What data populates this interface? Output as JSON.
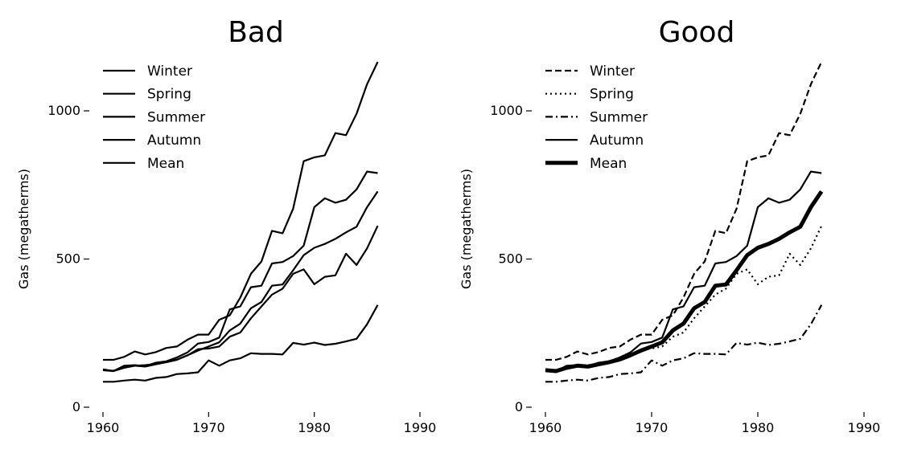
{
  "chart_data": [
    {
      "type": "line",
      "title": "Bad",
      "xlabel": "",
      "ylabel": "Gas (megatherms)",
      "xlim": [
        1960,
        1990
      ],
      "ylim": [
        0,
        1200
      ],
      "xticks": [
        "1960",
        "1970",
        "1980",
        "1990"
      ],
      "yticks": [
        "0",
        "500",
        "1000"
      ],
      "grid": false,
      "legend": "top-left",
      "x": [
        1960,
        1961,
        1962,
        1963,
        1964,
        1965,
        1966,
        1967,
        1968,
        1969,
        1970,
        1971,
        1972,
        1973,
        1974,
        1975,
        1976,
        1977,
        1978,
        1979,
        1980,
        1981,
        1982,
        1983,
        1984,
        1985,
        1986
      ],
      "series": [
        {
          "name": "Winter",
          "style": "solid",
          "width": 2.2,
          "values": [
            160,
            160,
            170,
            188,
            178,
            186,
            200,
            205,
            228,
            245,
            245,
            295,
            310,
            370,
            450,
            492,
            595,
            587,
            670,
            830,
            843,
            850,
            925,
            918,
            990,
            1090,
            1165
          ]
        },
        {
          "name": "Spring",
          "style": "solid",
          "width": 2.2,
          "values": [
            125,
            123,
            134,
            140,
            142,
            146,
            152,
            160,
            175,
            196,
            198,
            205,
            238,
            252,
            300,
            340,
            380,
            400,
            450,
            465,
            415,
            440,
            445,
            518,
            480,
            536,
            612
          ]
        },
        {
          "name": "Summer",
          "style": "solid",
          "width": 2.2,
          "values": [
            86,
            86,
            90,
            93,
            90,
            99,
            102,
            112,
            114,
            118,
            158,
            140,
            158,
            165,
            182,
            180,
            180,
            178,
            217,
            211,
            218,
            210,
            214,
            222,
            231,
            280,
            345
          ]
        },
        {
          "name": "Autumn",
          "style": "solid",
          "width": 2.2,
          "values": [
            128,
            122,
            140,
            142,
            138,
            150,
            155,
            168,
            185,
            215,
            220,
            235,
            330,
            340,
            405,
            410,
            485,
            490,
            510,
            545,
            675,
            705,
            690,
            700,
            735,
            795,
            790
          ]
        },
        {
          "name": "Mean",
          "style": "solid",
          "width": 2.2,
          "values": [
            125,
            122,
            133,
            140,
            137,
            145,
            152,
            161,
            175,
            191,
            205,
            219,
            259,
            282,
            334,
            355,
            410,
            414,
            462,
            513,
            538,
            551,
            568,
            590,
            609,
            675,
            728
          ]
        }
      ]
    },
    {
      "type": "line",
      "title": "Good",
      "xlabel": "",
      "ylabel": "Gas (megatherms)",
      "xlim": [
        1960,
        1990
      ],
      "ylim": [
        0,
        1200
      ],
      "xticks": [
        "1960",
        "1970",
        "1980",
        "1990"
      ],
      "yticks": [
        "0",
        "500",
        "1000"
      ],
      "grid": false,
      "legend": "top-left",
      "x": [
        1960,
        1961,
        1962,
        1963,
        1964,
        1965,
        1966,
        1967,
        1968,
        1969,
        1970,
        1971,
        1972,
        1973,
        1974,
        1975,
        1976,
        1977,
        1978,
        1979,
        1980,
        1981,
        1982,
        1983,
        1984,
        1985,
        1986
      ],
      "series": [
        {
          "name": "Winter",
          "style": "dashed",
          "width": 2.2,
          "values": [
            160,
            160,
            170,
            188,
            178,
            186,
            200,
            205,
            228,
            245,
            245,
            295,
            310,
            370,
            450,
            492,
            595,
            587,
            670,
            830,
            843,
            850,
            925,
            918,
            990,
            1090,
            1165
          ]
        },
        {
          "name": "Spring",
          "style": "dotted",
          "width": 2.2,
          "values": [
            125,
            123,
            134,
            140,
            142,
            146,
            152,
            160,
            175,
            196,
            198,
            205,
            238,
            252,
            300,
            340,
            380,
            400,
            450,
            465,
            415,
            440,
            445,
            518,
            480,
            536,
            612
          ]
        },
        {
          "name": "Summer",
          "style": "dashdot",
          "width": 2.2,
          "values": [
            86,
            86,
            90,
            93,
            90,
            99,
            102,
            112,
            114,
            118,
            158,
            140,
            158,
            165,
            182,
            180,
            180,
            178,
            217,
            211,
            218,
            210,
            214,
            222,
            231,
            280,
            345
          ]
        },
        {
          "name": "Autumn",
          "style": "solid",
          "width": 2.2,
          "values": [
            128,
            122,
            140,
            142,
            138,
            150,
            155,
            168,
            185,
            215,
            220,
            235,
            330,
            340,
            405,
            410,
            485,
            490,
            510,
            545,
            675,
            705,
            690,
            700,
            735,
            795,
            790
          ]
        },
        {
          "name": "Mean",
          "style": "solid",
          "width": 5,
          "values": [
            125,
            122,
            133,
            140,
            137,
            145,
            152,
            161,
            175,
            191,
            205,
            219,
            259,
            282,
            334,
            355,
            410,
            414,
            462,
            513,
            538,
            551,
            568,
            590,
            609,
            675,
            728
          ]
        }
      ]
    }
  ]
}
